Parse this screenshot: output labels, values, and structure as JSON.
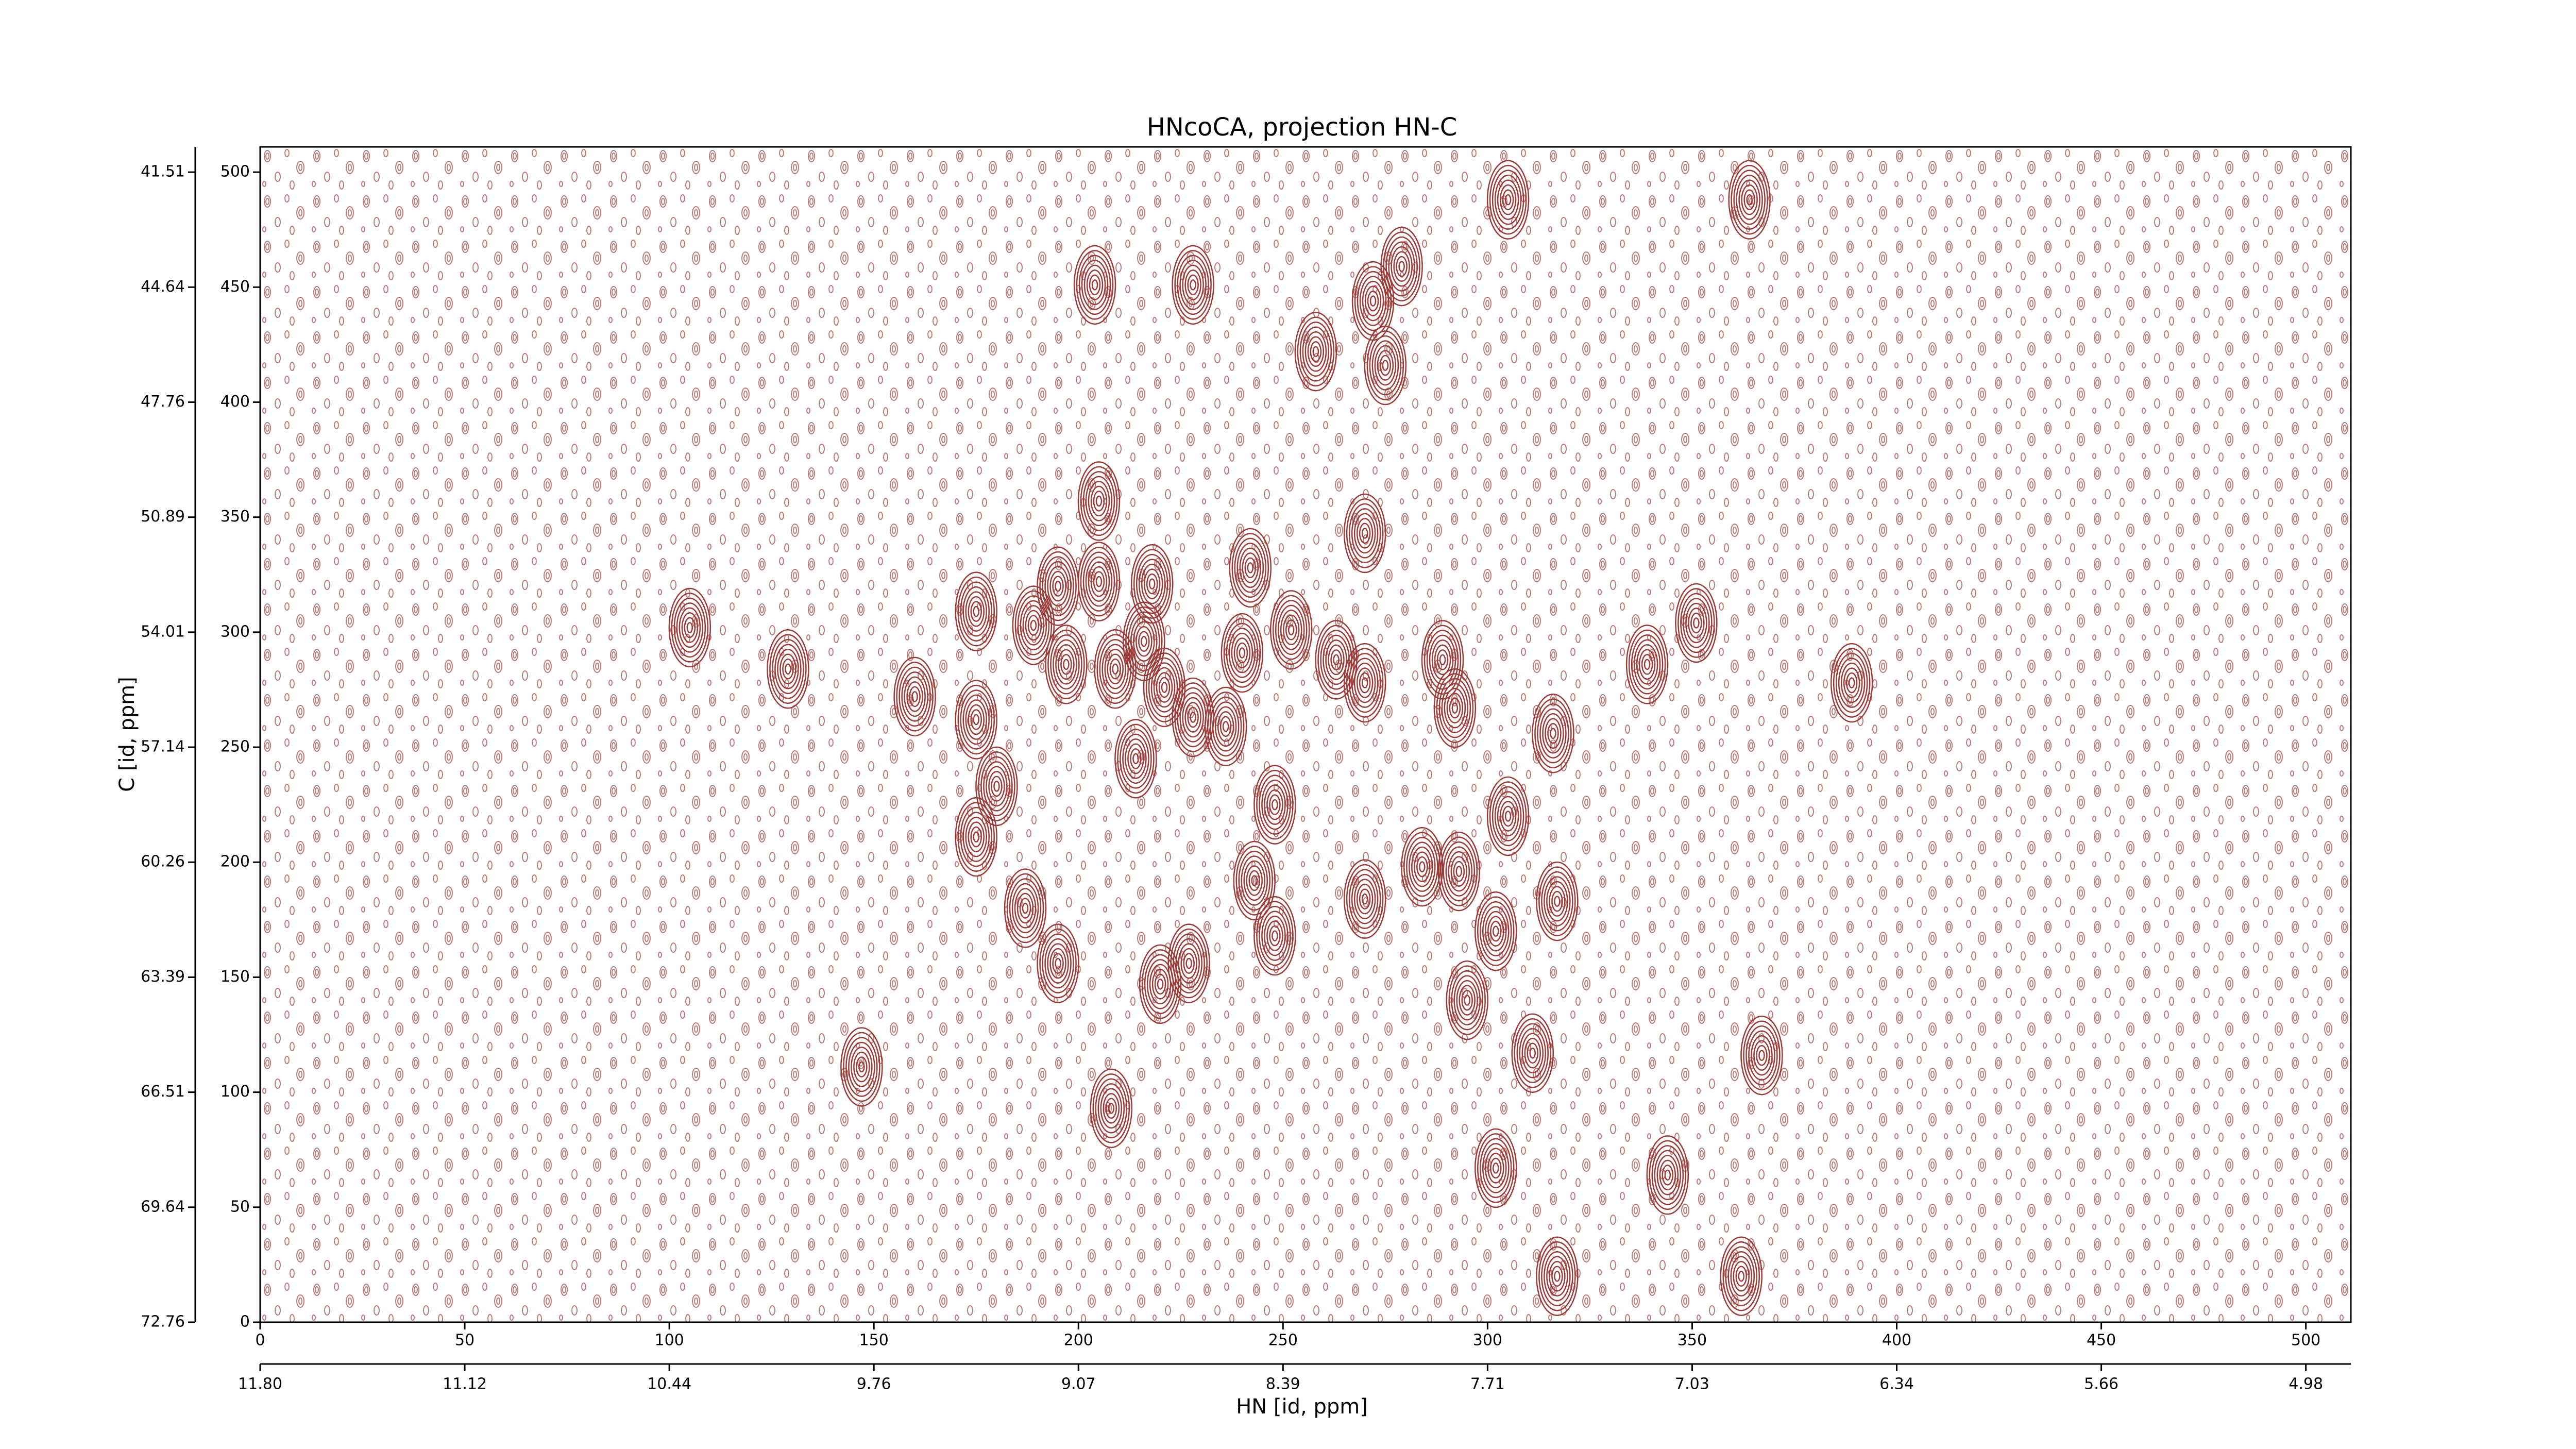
{
  "chart_data": {
    "type": "contour",
    "title": "HNcoCA, projection HN-C",
    "xlabel": "HN [id, ppm]",
    "ylabel": "C [id, ppm]",
    "xlim": [
      0,
      511
    ],
    "ylim": [
      0,
      511
    ],
    "xticks": [
      0,
      50,
      100,
      150,
      200,
      250,
      300,
      350,
      400,
      450,
      500
    ],
    "yticks": [
      0,
      50,
      100,
      150,
      200,
      250,
      300,
      350,
      400,
      450,
      500
    ],
    "x2ticks": [
      {
        "value": 0,
        "label": "11.80"
      },
      {
        "value": 50,
        "label": "11.12"
      },
      {
        "value": 100,
        "label": "10.44"
      },
      {
        "value": 150,
        "label": "9.76"
      },
      {
        "value": 200,
        "label": "9.07"
      },
      {
        "value": 250,
        "label": "8.39"
      },
      {
        "value": 300,
        "label": "7.71"
      },
      {
        "value": 350,
        "label": "7.03"
      },
      {
        "value": 400,
        "label": "6.34"
      },
      {
        "value": 450,
        "label": "5.66"
      },
      {
        "value": 500,
        "label": "4.98"
      }
    ],
    "y2ticks": [
      {
        "value": 0,
        "label": "72.76"
      },
      {
        "value": 50,
        "label": "69.64"
      },
      {
        "value": 100,
        "label": "66.51"
      },
      {
        "value": 150,
        "label": "63.39"
      },
      {
        "value": 200,
        "label": "60.26"
      },
      {
        "value": 250,
        "label": "57.14"
      },
      {
        "value": 300,
        "label": "54.01"
      },
      {
        "value": 350,
        "label": "50.89"
      },
      {
        "value": 400,
        "label": "47.76"
      },
      {
        "value": 450,
        "label": "44.64"
      },
      {
        "value": 500,
        "label": "41.51"
      }
    ],
    "color": "#9b3a36",
    "peaks": {
      "x": [
        105,
        129,
        160,
        175,
        175,
        180,
        175,
        189,
        195,
        197,
        205,
        205,
        204,
        209,
        218,
        216,
        214,
        221,
        228,
        228,
        236,
        242,
        240,
        248,
        252,
        258,
        263,
        270,
        272,
        270,
        275,
        279,
        289,
        292,
        284,
        293,
        305,
        302,
        295,
        316,
        317,
        339,
        351,
        389,
        187,
        195,
        208,
        220,
        227,
        243,
        248,
        270,
        147,
        305,
        364,
        311,
        367,
        302,
        317,
        362,
        344
      ],
      "y": [
        302,
        284,
        272,
        309,
        262,
        233,
        211,
        303,
        320,
        286,
        322,
        357,
        451,
        284,
        321,
        296,
        245,
        276,
        451,
        263,
        259,
        328,
        291,
        225,
        301,
        422,
        288,
        343,
        444,
        278,
        416,
        459,
        288,
        267,
        198,
        196,
        220,
        170,
        140,
        256,
        183,
        286,
        304,
        278,
        180,
        156,
        93,
        147,
        156,
        192,
        168,
        184,
        111,
        488,
        488,
        117,
        116,
        67,
        20,
        20,
        64
      ]
    }
  }
}
